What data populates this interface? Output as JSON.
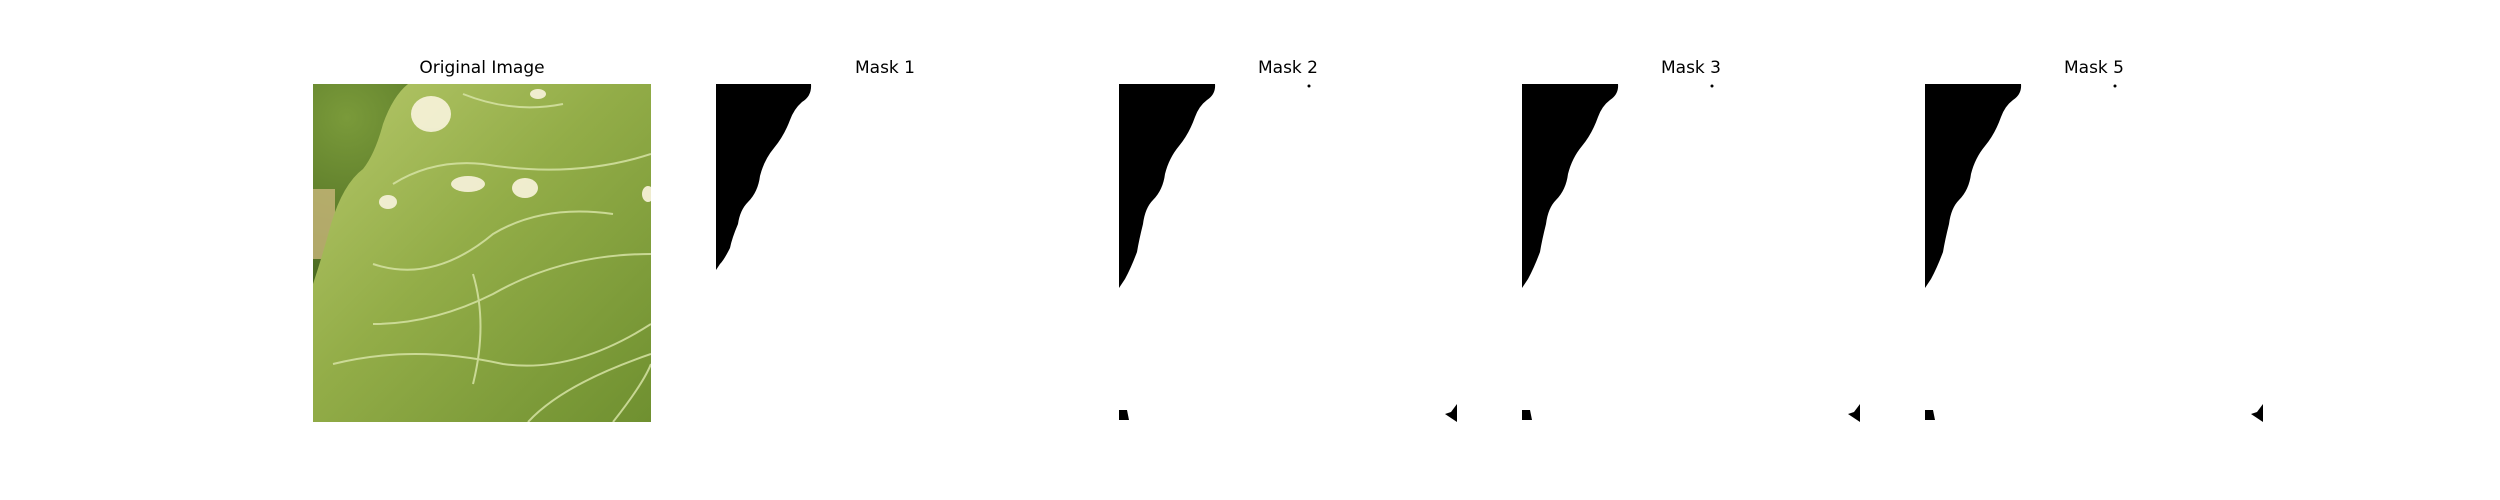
{
  "figure": {
    "panels": [
      {
        "title": "Original Image",
        "kind": "photo",
        "icon": "leaf-photo"
      },
      {
        "title": "Mask 1",
        "kind": "mask"
      },
      {
        "title": "Mask 2",
        "kind": "mask"
      },
      {
        "title": "Mask 3",
        "kind": "mask"
      },
      {
        "title": "Mask 5",
        "kind": "mask"
      }
    ],
    "colors": {
      "mask_fg": "#000000",
      "mask_bg": "#ffffff",
      "leaf": "#8fae3f",
      "leaf_dark": "#5e7f2a"
    }
  }
}
